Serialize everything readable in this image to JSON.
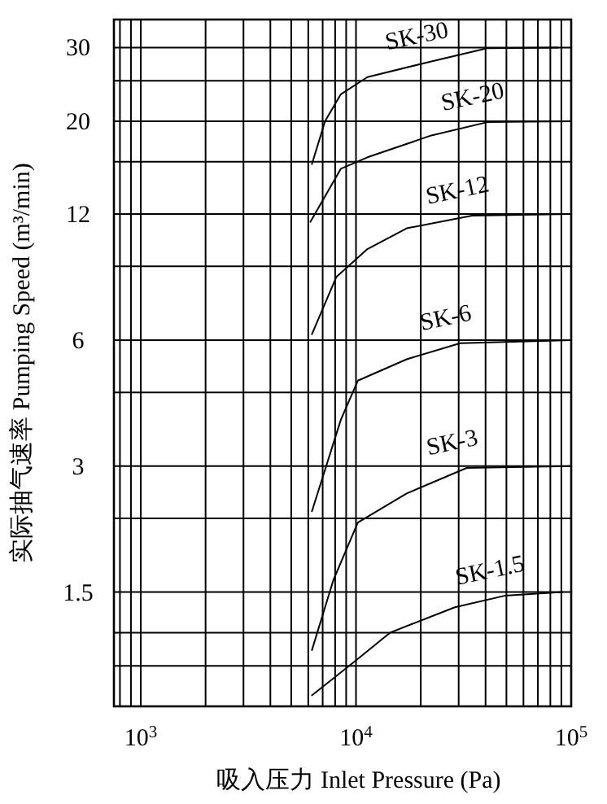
{
  "chart_data": {
    "type": "line",
    "xlabel": "吸入压力  Inlet Pressure (Pa)",
    "ylabel": "实际抽气速率  Pumping Speed (m³/min)",
    "log": "xy",
    "grid": true,
    "legend": false,
    "marker": "none",
    "line_style": "solid",
    "xlim": [
      750,
      100000
    ],
    "ylim": [
      0.8,
      35
    ],
    "xticks": [
      {
        "value": 800,
        "label": null
      },
      {
        "value": 900,
        "label": null
      },
      {
        "value": 1000,
        "label": "10$^{3}$"
      },
      {
        "value": 2000,
        "label": null
      },
      {
        "value": 3000,
        "label": null
      },
      {
        "value": 4000,
        "label": null
      },
      {
        "value": 5000,
        "label": null
      },
      {
        "value": 6000,
        "label": null
      },
      {
        "value": 7000,
        "label": null
      },
      {
        "value": 8000,
        "label": null
      },
      {
        "value": 9000,
        "label": null
      },
      {
        "value": 10000,
        "label": "10$^{4}$"
      },
      {
        "value": 20000,
        "label": null
      },
      {
        "value": 30000,
        "label": null
      },
      {
        "value": 40000,
        "label": null
      },
      {
        "value": 50000,
        "label": null
      },
      {
        "value": 60000,
        "label": null
      },
      {
        "value": 70000,
        "label": null
      },
      {
        "value": 80000,
        "label": null
      },
      {
        "value": 90000,
        "label": null
      },
      {
        "value": 100000,
        "label": "10$^{5}$"
      }
    ],
    "yticks": [
      {
        "value": 1.0,
        "label": null
      },
      {
        "value": 1.2,
        "label": null
      },
      1.5,
      {
        "value": 2.25,
        "label": null
      },
      3,
      {
        "value": 4.5,
        "label": null
      },
      6,
      {
        "value": 9,
        "label": null
      },
      12,
      {
        "value": 16,
        "label": null
      },
      20,
      {
        "value": 25,
        "label": null
      },
      30
    ],
    "series": [
      {
        "name": "SK-30",
        "color": "#000000",
        "x": [
          6240,
          7180,
          8500,
          11300,
          22400,
          40700,
          87000
        ],
        "values": [
          15.8,
          20,
          23.2,
          25.5,
          27.8,
          29.9,
          30
        ]
      },
      {
        "name": "SK-20",
        "color": "#000000",
        "x": [
          6140,
          8500,
          11300,
          22400,
          40700,
          100000
        ],
        "values": [
          11.5,
          15.4,
          16.4,
          18.5,
          19.9,
          20
        ]
      },
      {
        "name": "SK-12",
        "color": "#000000",
        "x": [
          6240,
          8110,
          11300,
          17200,
          34600,
          100000
        ],
        "values": [
          6.2,
          8.5,
          9.9,
          11.1,
          11.9,
          12
        ]
      },
      {
        "name": "SK-6",
        "color": "#000000",
        "x": [
          6240,
          8500,
          10200,
          17200,
          30500,
          100000
        ],
        "values": [
          2.34,
          3.87,
          4.8,
          5.4,
          5.9,
          6
        ]
      },
      {
        "name": "SK-3",
        "color": "#000000",
        "x": [
          6240,
          7840,
          10200,
          17200,
          32700,
          100000
        ],
        "values": [
          1.09,
          1.6,
          2.2,
          2.58,
          2.97,
          3
        ]
      },
      {
        "name": "SK-1.5",
        "color": "#000000",
        "x": [
          6240,
          10000,
          14400,
          28800,
          49000,
          91000
        ],
        "values": [
          0.85,
          1.03,
          1.2,
          1.38,
          1.47,
          1.5
        ]
      }
    ]
  }
}
